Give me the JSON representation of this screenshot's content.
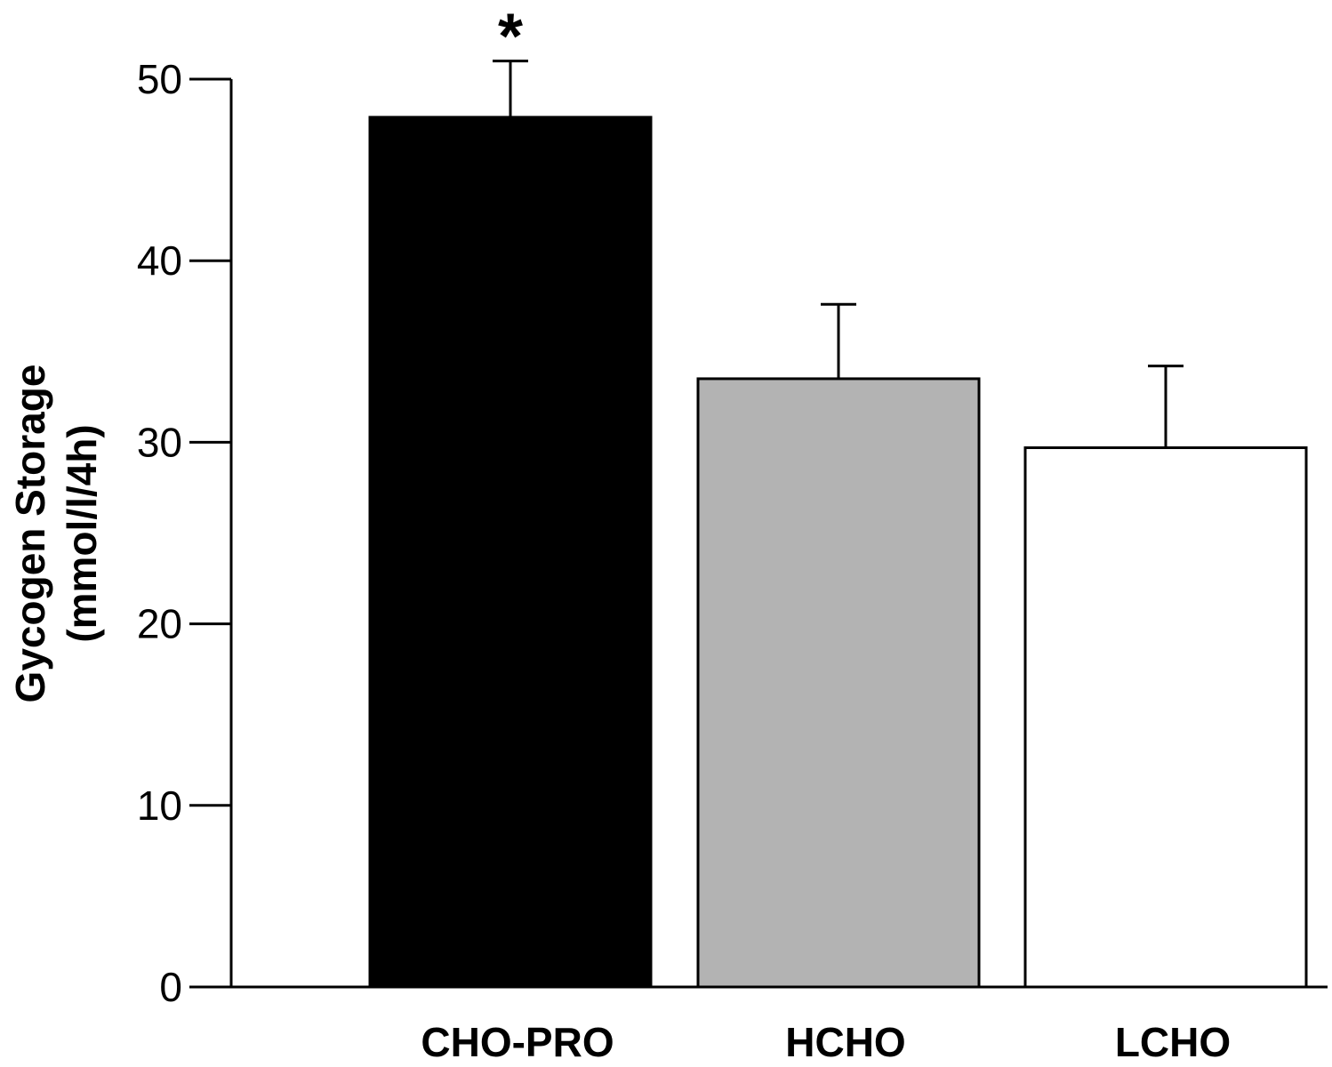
{
  "chart_data": {
    "type": "bar",
    "categories": [
      "CHO-PRO",
      "HCHO",
      "LCHO"
    ],
    "values": [
      47.9,
      33.5,
      29.7
    ],
    "errors": [
      3.1,
      4.1,
      4.5
    ],
    "colors": [
      "#000000",
      "#b3b3b3",
      "#ffffff"
    ],
    "annotations": [
      "*",
      "",
      ""
    ],
    "title": "",
    "xlabel": "",
    "ylabel": [
      "Gycogen Storage",
      "(mmol/l/4h)"
    ],
    "ylim": [
      0,
      50
    ],
    "yticks": [
      0,
      10,
      20,
      30,
      40,
      50
    ],
    "grid": false,
    "legend": "none"
  }
}
